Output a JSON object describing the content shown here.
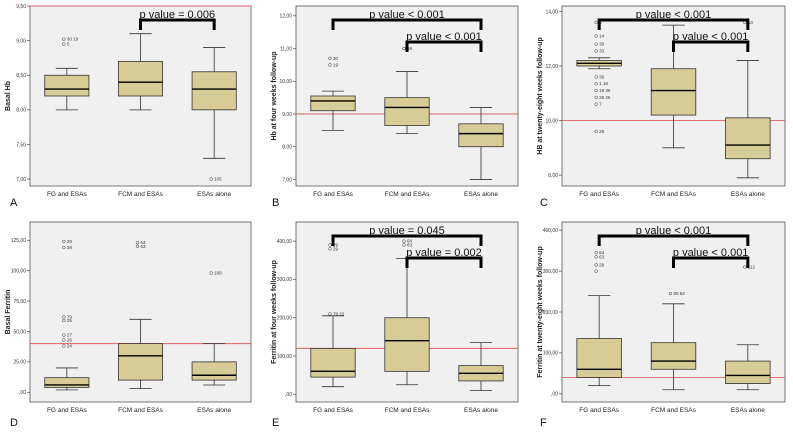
{
  "chart_data": [
    {
      "type": "box",
      "panel_letter": "A",
      "ylabel": "Basal Hb",
      "categories": [
        "FG and ESAs",
        "FCM and ESAs",
        "ESAs alone"
      ],
      "ylim": [
        6.9,
        9.5
      ],
      "yticks": [
        7.0,
        7.5,
        8.0,
        8.5,
        9.0,
        9.5
      ],
      "ytick_labels": [
        "7,00",
        "7,50",
        "8,00",
        "8,50",
        "9,00",
        "9,50"
      ],
      "reference_line": 9.5,
      "boxes": [
        {
          "whisker_low": 8.0,
          "q1": 8.2,
          "median": 8.3,
          "q3": 8.5,
          "whisker_high": 8.6
        },
        {
          "whisker_low": 8.0,
          "q1": 8.2,
          "median": 8.4,
          "q3": 8.7,
          "whisker_high": 9.1
        },
        {
          "whisker_low": 7.3,
          "q1": 8.0,
          "median": 8.3,
          "q3": 8.55,
          "whisker_high": 8.9
        }
      ],
      "outliers": [
        {
          "cat": 0,
          "y": 9.02,
          "label": "30  19"
        },
        {
          "cat": 0,
          "y": 8.95,
          "label": "5"
        },
        {
          "cat": 2,
          "y": 7.0,
          "label": "105"
        }
      ],
      "comparisons": [
        {
          "from": 1,
          "to": 2,
          "text": "p value = 0.006"
        }
      ]
    },
    {
      "type": "box",
      "panel_letter": "B",
      "ylabel": "Hb at four weeks follow-up",
      "categories": [
        "FG and ESAs",
        "FCM and ESAs",
        "ESAs alone"
      ],
      "ylim": [
        6.8,
        12.3
      ],
      "yticks": [
        7.0,
        8.0,
        9.0,
        10.0,
        11.0,
        12.0
      ],
      "ytick_labels": [
        "7,00",
        "8,00",
        "9,00",
        "10,00",
        "11,00",
        "12,00"
      ],
      "reference_line": 9.0,
      "boxes": [
        {
          "whisker_low": 8.5,
          "q1": 9.1,
          "median": 9.4,
          "q3": 9.55,
          "whisker_high": 9.7
        },
        {
          "whisker_low": 8.4,
          "q1": 8.65,
          "median": 9.2,
          "q3": 9.5,
          "whisker_high": 10.3
        },
        {
          "whisker_low": 7.0,
          "q1": 8.0,
          "median": 8.4,
          "q3": 8.7,
          "whisker_high": 9.2
        }
      ],
      "outliers": [
        {
          "cat": 0,
          "y": 10.7,
          "label": "30"
        },
        {
          "cat": 0,
          "y": 10.5,
          "label": "19"
        },
        {
          "cat": 1,
          "y": 11.0,
          "label": "68"
        }
      ],
      "comparisons": [
        {
          "from": 0,
          "to": 2,
          "text": "p value < 0.001"
        },
        {
          "from": 1,
          "to": 2,
          "text": "p value < 0.001"
        }
      ]
    },
    {
      "type": "box",
      "panel_letter": "C",
      "ylabel": "HB at twenty-eight weeks follow-up",
      "categories": [
        "FG and ESAs",
        "FCM and ESAs",
        "ESAs alone"
      ],
      "ylim": [
        7.6,
        14.2
      ],
      "yticks": [
        8.0,
        10.0,
        12.0,
        14.0
      ],
      "ytick_labels": [
        "8,00",
        "10,00",
        "12,00",
        "14,00"
      ],
      "reference_line": 10.0,
      "boxes": [
        {
          "whisker_low": 11.9,
          "q1": 12.0,
          "median": 12.1,
          "q3": 12.2,
          "whisker_high": 12.3
        },
        {
          "whisker_low": 9.0,
          "q1": 10.2,
          "median": 11.1,
          "q3": 11.9,
          "whisker_high": 13.5
        },
        {
          "whisker_low": 7.9,
          "q1": 8.6,
          "median": 9.1,
          "q3": 10.1,
          "whisker_high": 12.2
        }
      ],
      "outliers": [
        {
          "cat": 0,
          "y": 13.6,
          "label": "5"
        },
        {
          "cat": 0,
          "y": 13.1,
          "label": "14"
        },
        {
          "cat": 0,
          "y": 12.8,
          "label": "30"
        },
        {
          "cat": 0,
          "y": 12.55,
          "label": "33"
        },
        {
          "cat": 0,
          "y": 11.6,
          "label": "36"
        },
        {
          "cat": 0,
          "y": 11.35,
          "label": "1  18"
        },
        {
          "cat": 0,
          "y": 11.1,
          "label": "19  39"
        },
        {
          "cat": 0,
          "y": 10.85,
          "label": "28  26"
        },
        {
          "cat": 0,
          "y": 10.6,
          "label": "7"
        },
        {
          "cat": 0,
          "y": 9.6,
          "label": "29"
        },
        {
          "cat": 2,
          "y": 13.6,
          "label": "13"
        }
      ],
      "comparisons": [
        {
          "from": 0,
          "to": 2,
          "text": "p value < 0.001"
        },
        {
          "from": 1,
          "to": 2,
          "text": "p value < 0.001"
        }
      ]
    },
    {
      "type": "box",
      "panel_letter": "D",
      "ylabel": "Basal Ferritin",
      "categories": [
        "FG and ESAs",
        "FCM and ESAs",
        "ESAs alone"
      ],
      "ylim": [
        -8,
        140
      ],
      "yticks": [
        0,
        25,
        50,
        75,
        100,
        125
      ],
      "ytick_labels": [
        ",00",
        "25,00",
        "50,00",
        "75,00",
        "100,00",
        "125,00"
      ],
      "reference_line": 40,
      "boxes": [
        {
          "whisker_low": 2,
          "q1": 4,
          "median": 6,
          "q3": 12,
          "whisker_high": 20
        },
        {
          "whisker_low": 3,
          "q1": 10,
          "median": 30,
          "q3": 40,
          "whisker_high": 60
        },
        {
          "whisker_low": 6,
          "q1": 10,
          "median": 14,
          "q3": 25,
          "whisker_high": 40
        }
      ],
      "outliers": [
        {
          "cat": 0,
          "y": 124,
          "label": "29"
        },
        {
          "cat": 0,
          "y": 119,
          "label": "28"
        },
        {
          "cat": 0,
          "y": 62,
          "label": "79"
        },
        {
          "cat": 0,
          "y": 59,
          "label": "25"
        },
        {
          "cat": 0,
          "y": 47,
          "label": "27"
        },
        {
          "cat": 0,
          "y": 43,
          "label": "26"
        },
        {
          "cat": 0,
          "y": 38,
          "label": "24"
        },
        {
          "cat": 1,
          "y": 123,
          "label": "64"
        },
        {
          "cat": 1,
          "y": 120,
          "label": "63"
        },
        {
          "cat": 2,
          "y": 98,
          "label": "109"
        }
      ],
      "comparisons": []
    },
    {
      "type": "box",
      "panel_letter": "E",
      "ylabel": "Ferritin at four weeks follow-up",
      "categories": [
        "FG and ESAs",
        "FCM and ESAs",
        "ESAs alone"
      ],
      "ylim": [
        -20,
        450
      ],
      "yticks": [
        0,
        100,
        200,
        300,
        400
      ],
      "ytick_labels": [
        ",00",
        "100,00",
        "200,00",
        "300,00",
        "400,00"
      ],
      "reference_line": 120,
      "boxes": [
        {
          "whisker_low": 20,
          "q1": 45,
          "median": 60,
          "q3": 120,
          "whisker_high": 205
        },
        {
          "whisker_low": 25,
          "q1": 60,
          "median": 140,
          "q3": 200,
          "whisker_high": 355
        },
        {
          "whisker_low": 10,
          "q1": 35,
          "median": 55,
          "q3": 75,
          "whisker_high": 135
        }
      ],
      "outliers": [
        {
          "cat": 0,
          "y": 390,
          "label": "29"
        },
        {
          "cat": 0,
          "y": 380,
          "label": "29"
        },
        {
          "cat": 0,
          "y": 210,
          "label": "79  22"
        },
        {
          "cat": 1,
          "y": 400,
          "label": "64"
        },
        {
          "cat": 1,
          "y": 390,
          "label": "63"
        }
      ],
      "comparisons": [
        {
          "from": 0,
          "to": 2,
          "text": "p value = 0.045"
        },
        {
          "from": 1,
          "to": 2,
          "text": "p value = 0.002"
        }
      ]
    },
    {
      "type": "box",
      "panel_letter": "F",
      "ylabel": "Ferritin at twenty-eight weeks follow-up",
      "categories": [
        "FG and ESAs",
        "FCM and ESAs",
        "ESAs alone"
      ],
      "ylim": [
        -20,
        420
      ],
      "yticks": [
        0,
        100,
        200,
        300,
        400
      ],
      "ytick_labels": [
        ",00",
        "100,00",
        "200,00",
        "300,00",
        "400,00"
      ],
      "reference_line": 40,
      "boxes": [
        {
          "whisker_low": 20,
          "q1": 40,
          "median": 60,
          "q3": 135,
          "whisker_high": 240
        },
        {
          "whisker_low": 10,
          "q1": 60,
          "median": 80,
          "q3": 125,
          "whisker_high": 220
        },
        {
          "whisker_low": 10,
          "q1": 25,
          "median": 45,
          "q3": 80,
          "whisker_high": 120
        }
      ],
      "outliers": [
        {
          "cat": 0,
          "y": 345,
          "label": "64"
        },
        {
          "cat": 0,
          "y": 335,
          "label": "63"
        },
        {
          "cat": 0,
          "y": 315,
          "label": "29"
        },
        {
          "cat": 0,
          "y": 300,
          "label": ""
        },
        {
          "cat": 1,
          "y": 245,
          "label": "80  62"
        },
        {
          "cat": 2,
          "y": 310,
          "label": "112"
        }
      ],
      "comparisons": [
        {
          "from": 0,
          "to": 2,
          "text": "p value < 0.001"
        },
        {
          "from": 1,
          "to": 2,
          "text": "p value < 0.001"
        }
      ]
    }
  ],
  "style": {
    "box_fill": "#d8cc96",
    "box_stroke": "#333333",
    "plot_bg": "#f0f0f0",
    "ref_line": "#e06060",
    "bracket": "#000000"
  }
}
